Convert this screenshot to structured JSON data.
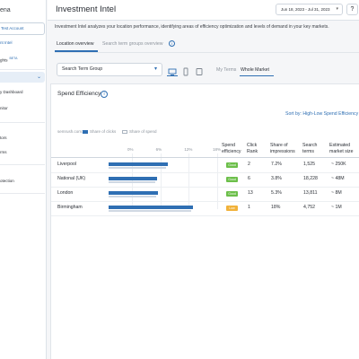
{
  "sidebar": {
    "brand": "ena",
    "account": "Test Account",
    "items": [
      {
        "label": "nt Intel",
        "style": "blue",
        "badge": ""
      },
      {
        "label": "ghts",
        "style": "",
        "badge": "BETA"
      },
      {
        "label": "",
        "style": "",
        "badge": ""
      },
      {
        "label": "y Dashboard",
        "style": "",
        "badge": ""
      },
      {
        "label": "nitor",
        "style": "",
        "badge": ""
      },
      {
        "label": "tors",
        "style": "",
        "badge": ""
      },
      {
        "label": "rms",
        "style": "",
        "badge": ""
      },
      {
        "label": "otection",
        "style": "",
        "badge": ""
      },
      {
        "label": "",
        "style": "",
        "badge": ""
      },
      {
        "label": "",
        "style": "orange",
        "badge": ""
      }
    ]
  },
  "header": {
    "title": "Investment Intel",
    "date_range": "Jun 18, 2023 - Jul 31, 2023",
    "help": "?"
  },
  "description": "Investment Intel analyzes your location performance, identifying areas of efficiency optimization and levels of demand in your key markets.",
  "tabs": [
    {
      "label": "Location overview",
      "active": true
    },
    {
      "label": "Search term groups overview",
      "active": false
    }
  ],
  "controls": {
    "group_select": "Search Term Group",
    "market_options": [
      "My Terms",
      "Whole Market"
    ],
    "active_market": "Whole Market",
    "device_icons": [
      "desktop-icon",
      "mobile-icon",
      "tablet-icon"
    ]
  },
  "card": {
    "title": "Spend Efficiency",
    "sort_label": "Sort by: High-Low Spend Efficiency",
    "domain_label": "semrush.com:",
    "legend": [
      "Share of clicks",
      "Share of spend"
    ],
    "colors": {
      "clicks": "#2f6fb3",
      "spend": "#cfd8e3",
      "good": "#6cbf4a",
      "low": "#f1b23a"
    },
    "axis_ticks": [
      "0%",
      "6%",
      "12%",
      "18%"
    ],
    "columns": {
      "efficiency": "Spend efficiency",
      "click_rank": "Click Rank",
      "impressions": "Share of impressions",
      "search_terms": "Search terms",
      "market_size": "Estimated market size"
    },
    "rows": [
      {
        "location": "Liverpool",
        "clicks_share": 12.5,
        "spend_share": 12.1,
        "efficiency": "Good",
        "efficiency_level": "good",
        "click_rank": "2",
        "impressions": "7.2%",
        "search_terms": "1,525",
        "market_size": "~ 250K"
      },
      {
        "location": "National (UK)",
        "clicks_share": 10.2,
        "spend_share": 9.8,
        "efficiency": "Good",
        "efficiency_level": "good",
        "click_rank": "6",
        "impressions": "3.8%",
        "search_terms": "18,228",
        "market_size": "~ 48M"
      },
      {
        "location": "London",
        "clicks_share": 10.5,
        "spend_share": 10.1,
        "efficiency": "Good",
        "efficiency_level": "good",
        "click_rank": "13",
        "impressions": "5.3%",
        "search_terms": "13,811",
        "market_size": "~ 8M"
      },
      {
        "location": "Birmingham",
        "clicks_share": 17.8,
        "spend_share": 17.5,
        "efficiency": "Low",
        "efficiency_level": "low",
        "click_rank": "1",
        "impressions": "18%",
        "search_terms": "4,752",
        "market_size": "~ 1M"
      }
    ]
  }
}
